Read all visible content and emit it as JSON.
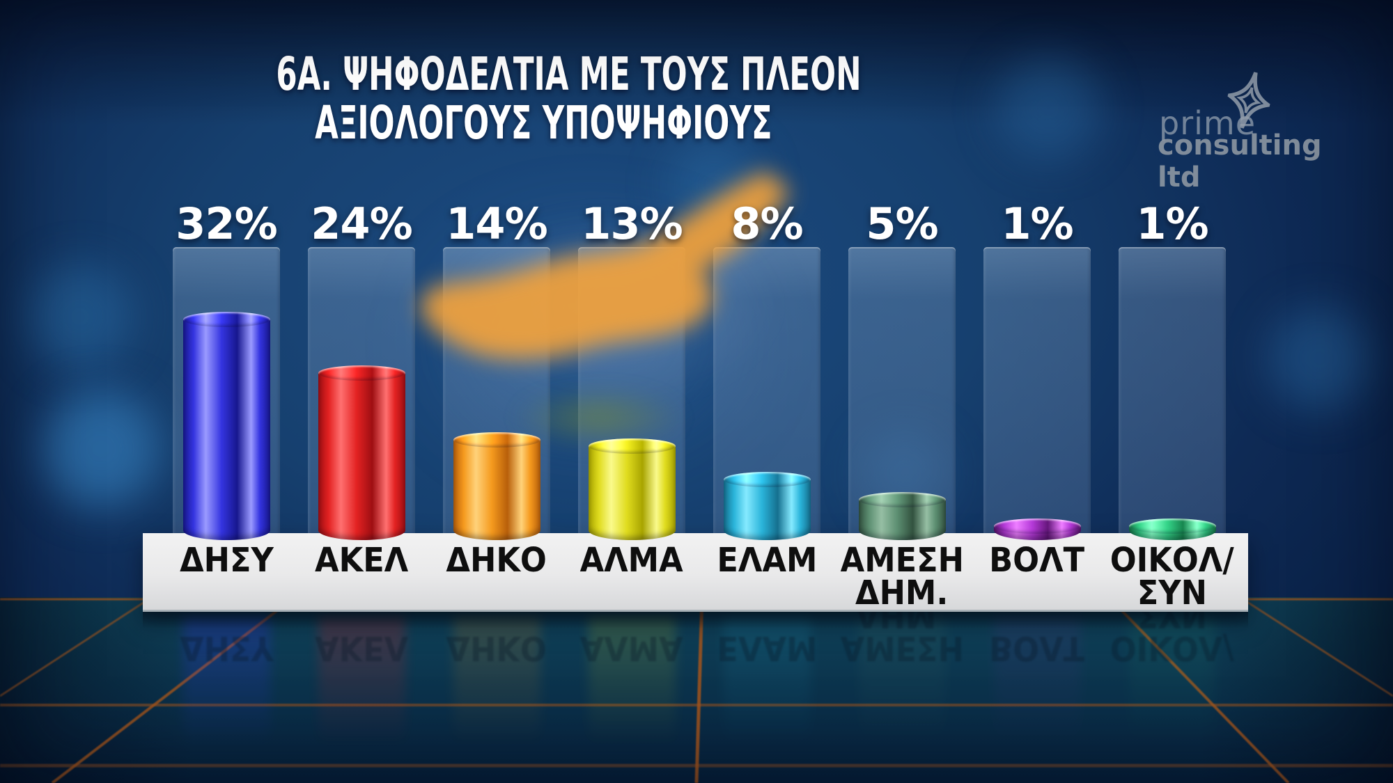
{
  "title": {
    "line1": "6Α. ΨΗΦΟΔΕΛΤΙΑ ΜΕ ΤΟΥΣ ΠΛΕΟΝ",
    "line2": "ΑΞΙΟΛΟΓΟΥΣ ΥΠΟΨΗΦΙΟΥΣ"
  },
  "logo": {
    "line1": "prime",
    "line2": "consulting ltd",
    "icon": "four-point-star-icon"
  },
  "chart_data": {
    "type": "bar",
    "title": "6Α. ΨΗΦΟΔΕΛΤΙΑ ΜΕ ΤΟΥΣ ΠΛΕΟΝ ΑΞΙΟΛΟΓΟΥΣ ΥΠΟΨΗΦΙΟΥΣ",
    "unit": "%",
    "categories": [
      "ΔΗΣΥ",
      "ΑΚΕΛ",
      "ΔΗΚΟ",
      "ΑΛΜΑ",
      "ΕΛΑΜ",
      "ΑΜΕΣΗ ΔΗΜ.",
      "ΒΟΛΤ",
      "ΟΙΚΟΛ/ΣΥΝ"
    ],
    "values": [
      32,
      24,
      14,
      13,
      8,
      5,
      1,
      1
    ],
    "value_labels": [
      "32%",
      "24%",
      "14%",
      "13%",
      "8%",
      "5%",
      "1%",
      "1%"
    ],
    "bar_colors": [
      "#3434e0",
      "#e32222",
      "#f59a1e",
      "#e0dc1e",
      "#2ab4da",
      "#5d8f72",
      "#a434c4",
      "#2fc07c"
    ],
    "ylim": [
      0,
      43
    ],
    "grid": false,
    "legend": "none"
  },
  "bars": [
    {
      "name": "ΔΗΣΥ",
      "label_lines": [
        "ΔΗΣΥ"
      ],
      "pct": 32,
      "value_label": "32%",
      "color": {
        "dark": "#17178e",
        "base": "#3434e0",
        "light": "#9a9aff"
      }
    },
    {
      "name": "ΑΚΕΛ",
      "label_lines": [
        "ΑΚΕΛ"
      ],
      "pct": 24,
      "value_label": "24%",
      "color": {
        "dark": "#9e0e12",
        "base": "#e32222",
        "light": "#ff7070"
      }
    },
    {
      "name": "ΔΗΚΟ",
      "label_lines": [
        "ΔΗΚΟ"
      ],
      "pct": 14,
      "value_label": "14%",
      "color": {
        "dark": "#b85f0a",
        "base": "#f59a1e",
        "light": "#ffd27a"
      }
    },
    {
      "name": "ΑΛΜΑ",
      "label_lines": [
        "ΑΛΜΑ"
      ],
      "pct": 13,
      "value_label": "13%",
      "color": {
        "dark": "#a8a400",
        "base": "#e0dc1e",
        "light": "#fafa8c"
      }
    },
    {
      "name": "ΕΛΑΜ",
      "label_lines": [
        "ΕΛΑΜ"
      ],
      "pct": 8,
      "value_label": "8%",
      "color": {
        "dark": "#15708f",
        "base": "#2ab4da",
        "light": "#85eaff"
      }
    },
    {
      "name": "ΑΜΕΣΗ ΔΗΜ.",
      "label_lines": [
        "ΑΜΕΣΗ",
        "ΔΗΜ."
      ],
      "pct": 5,
      "value_label": "5%",
      "color": {
        "dark": "#32523f",
        "base": "#5d8f72",
        "light": "#96bfa4"
      }
    },
    {
      "name": "ΒΟΛΤ",
      "label_lines": [
        "ΒΟΛΤ"
      ],
      "pct": 1,
      "value_label": "1%",
      "color": {
        "dark": "#5c1470",
        "base": "#a434c4",
        "light": "#d973ea"
      }
    },
    {
      "name": "ΟΙΚΟΛ/ΣΥΝ",
      "label_lines": [
        "ΟΙΚΟΛ/",
        "ΣΥΝ"
      ],
      "pct": 1,
      "value_label": "1%",
      "color": {
        "dark": "#157a48",
        "base": "#2fc07c",
        "light": "#7df2bb"
      }
    }
  ],
  "colors": {
    "background": "#16406f",
    "shelf": "#ececec",
    "grid_line": "#a4551c",
    "title_text": "#ffffff",
    "label_text": "#0e0e0e",
    "map_blur": "#f2a23c",
    "logo_gray": "#8d97a2"
  }
}
